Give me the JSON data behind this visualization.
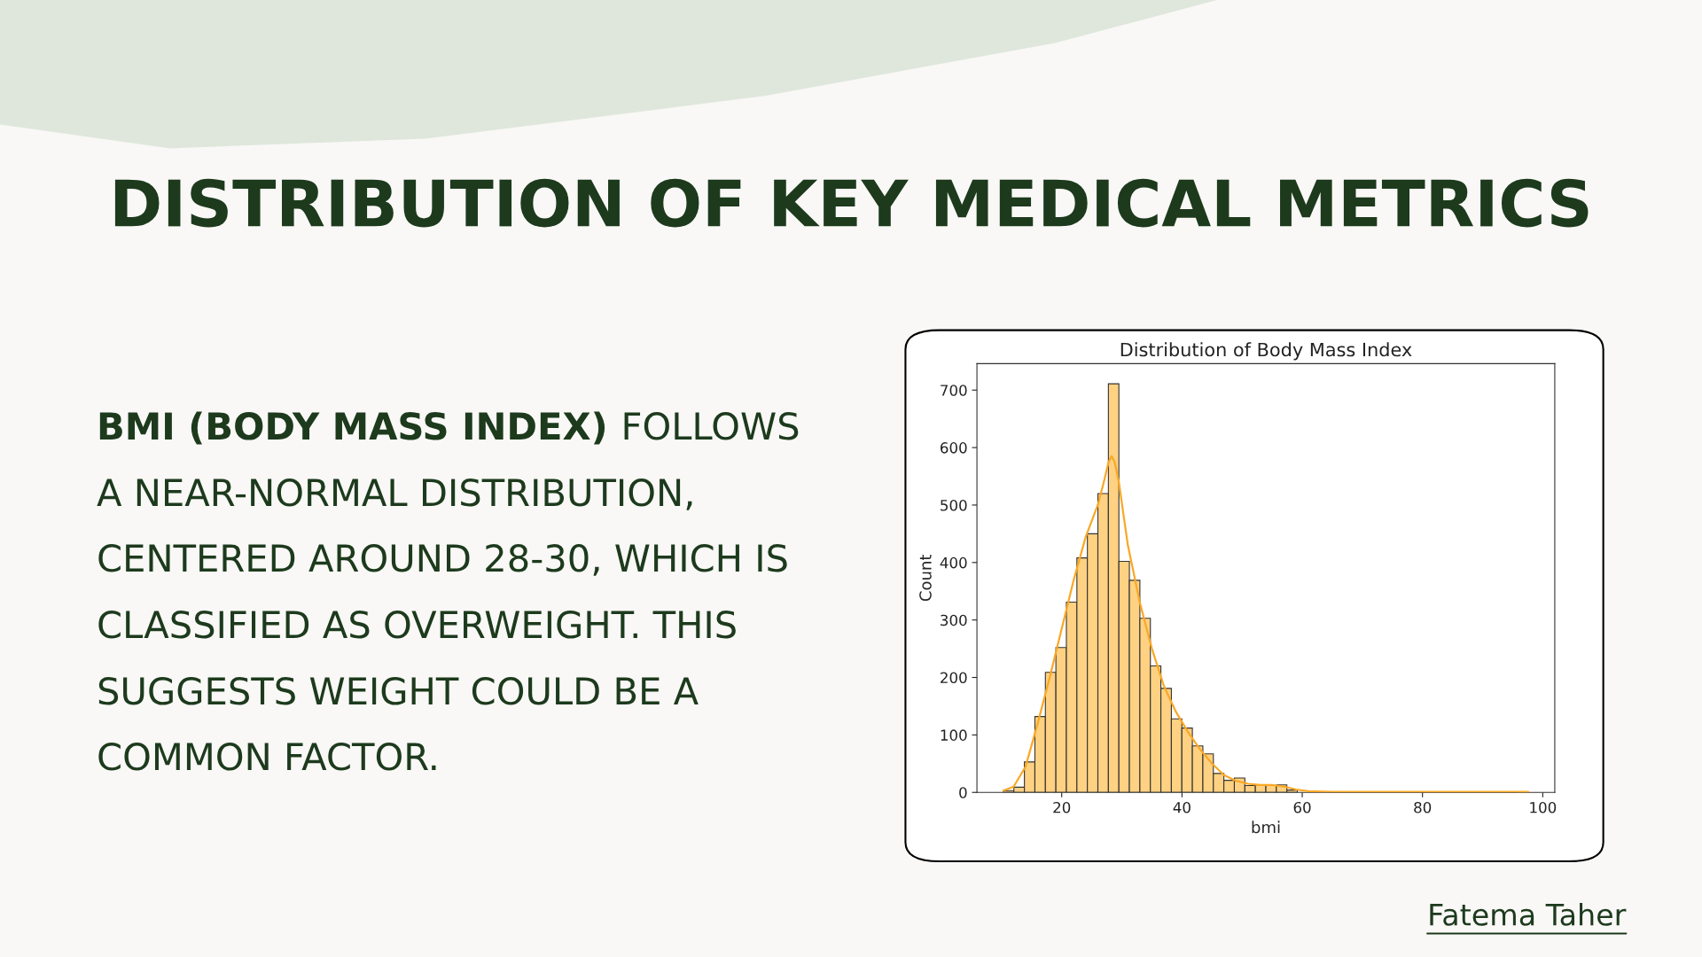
{
  "chart_data": {
    "type": "histogram",
    "title": "Distribution of Body Mass Index",
    "xlabel": "bmi",
    "ylabel": "Count",
    "bins": [
      10.3,
      12.046,
      13.792,
      15.538,
      17.284,
      19.03,
      20.776,
      22.522,
      24.268,
      26.014,
      27.76,
      29.506,
      31.252,
      32.998,
      34.744,
      36.49,
      38.236,
      39.982,
      41.728,
      43.474,
      45.22,
      46.966,
      48.712,
      50.458,
      52.204,
      53.95,
      55.696,
      57.442,
      59.188,
      60.934,
      62.68,
      64.426,
      66.172,
      67.918,
      69.664,
      71.41,
      73.156,
      74.902,
      76.648,
      78.394,
      80.14,
      81.886,
      83.632,
      85.378,
      87.124,
      88.87,
      90.616,
      92.362,
      94.108,
      95.854,
      97.6
    ],
    "values": [
      3,
      9,
      53,
      132,
      209,
      252,
      331,
      408,
      450,
      520,
      711,
      402,
      369,
      303,
      220,
      181,
      128,
      112,
      81,
      67,
      33,
      21,
      25,
      12,
      13,
      12,
      13,
      4,
      null,
      null,
      null,
      0,
      0,
      0,
      0,
      0,
      0,
      0,
      0,
      0,
      0,
      0,
      0,
      0,
      0,
      0,
      0,
      0,
      0,
      null
    ],
    "color": "#ffd182",
    "series": [
      {
        "type": "line",
        "color": "#f9a825",
        "x": [
          10.3,
          12,
          14,
          16,
          18,
          20,
          22,
          24,
          26,
          27,
          27.8,
          28.3,
          28.8,
          29.5,
          31,
          33,
          35,
          37,
          39,
          41,
          43,
          45,
          47,
          49,
          51,
          53,
          55,
          57,
          59,
          61,
          65,
          70,
          80,
          90,
          97.6
        ],
        "values": [
          3,
          10,
          45,
          120,
          200,
          285,
          370,
          445,
          500,
          540,
          575,
          585,
          575,
          540,
          430,
          330,
          250,
          185,
          140,
          105,
          75,
          50,
          30,
          20,
          15,
          13,
          13,
          10,
          5,
          2,
          1,
          1,
          1,
          1,
          1
        ]
      }
    ],
    "xlim": [
      5.9,
      102
    ],
    "ylim": [
      0,
      746
    ],
    "xticks": [
      20,
      40,
      60,
      80,
      100
    ],
    "yticks": [
      0,
      100,
      200,
      300,
      400,
      500,
      600,
      700
    ],
    "grid": false,
    "legend": false,
    "annotations": [
      "DISTRIBUTION OF KEY MEDICAL METRICS",
      "BMI (BODY MASS INDEX)",
      "FOLLOWS A NEAR-NORMAL DISTRIBUTION, CENTERED AROUND 28-30, WHICH IS CLASSIFIED AS OVERWEIGHT. THIS SUGGESTS WEIGHT COULD BE A COMMON FACTOR.",
      "Fatema Taher"
    ]
  }
}
